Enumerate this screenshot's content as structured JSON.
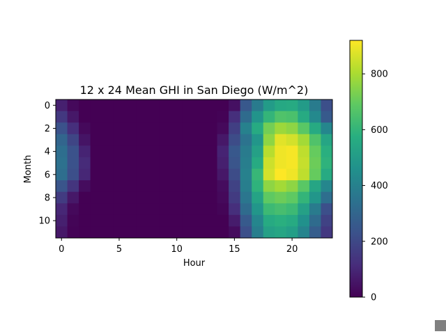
{
  "chart_data": {
    "type": "heatmap",
    "title": "12 x 24 Mean GHI in San Diego (W/m^2)",
    "xlabel": "Hour",
    "ylabel": "Month",
    "x_ticks": [
      0,
      5,
      10,
      15,
      20
    ],
    "y_ticks": [
      0,
      2,
      4,
      6,
      8,
      10
    ],
    "colorbar_ticks": [
      0,
      200,
      400,
      600,
      800
    ],
    "colormap": "viridis",
    "vmin": 0,
    "vmax": 920,
    "rows": 12,
    "cols": 24,
    "values": [
      [
        80,
        20,
        0,
        0,
        0,
        0,
        0,
        0,
        0,
        0,
        0,
        0,
        0,
        0,
        0,
        40,
        250,
        380,
        500,
        550,
        560,
        500,
        380,
        220
      ],
      [
        150,
        60,
        0,
        0,
        0,
        0,
        0,
        0,
        0,
        0,
        0,
        0,
        0,
        0,
        5,
        120,
        320,
        470,
        600,
        660,
        650,
        560,
        430,
        260
      ],
      [
        230,
        120,
        20,
        0,
        0,
        0,
        0,
        0,
        0,
        0,
        0,
        0,
        0,
        0,
        20,
        170,
        400,
        560,
        720,
        780,
        760,
        680,
        560,
        420
      ],
      [
        300,
        190,
        50,
        0,
        0,
        0,
        0,
        0,
        0,
        0,
        0,
        0,
        0,
        0,
        60,
        210,
        350,
        480,
        760,
        880,
        860,
        790,
        660,
        540
      ],
      [
        330,
        230,
        90,
        0,
        0,
        0,
        0,
        0,
        0,
        0,
        0,
        0,
        0,
        0,
        90,
        250,
        380,
        520,
        820,
        900,
        910,
        830,
        700,
        580
      ],
      [
        340,
        230,
        110,
        0,
        0,
        0,
        0,
        0,
        0,
        0,
        0,
        0,
        0,
        0,
        80,
        240,
        390,
        560,
        850,
        900,
        910,
        840,
        710,
        590
      ],
      [
        330,
        220,
        100,
        0,
        0,
        0,
        0,
        0,
        0,
        0,
        0,
        0,
        0,
        0,
        60,
        210,
        400,
        610,
        860,
        920,
        900,
        830,
        700,
        560
      ],
      [
        240,
        140,
        30,
        0,
        0,
        0,
        0,
        0,
        0,
        0,
        0,
        0,
        0,
        0,
        30,
        180,
        390,
        590,
        760,
        790,
        760,
        680,
        540,
        420
      ],
      [
        160,
        60,
        0,
        0,
        0,
        0,
        0,
        0,
        0,
        0,
        0,
        0,
        0,
        0,
        20,
        160,
        360,
        530,
        690,
        710,
        690,
        600,
        480,
        330
      ],
      [
        100,
        20,
        0,
        0,
        0,
        0,
        0,
        0,
        0,
        0,
        0,
        0,
        0,
        0,
        10,
        120,
        320,
        480,
        620,
        640,
        620,
        520,
        380,
        220
      ],
      [
        80,
        10,
        0,
        0,
        0,
        0,
        0,
        0,
        0,
        0,
        0,
        0,
        0,
        0,
        0,
        70,
        260,
        420,
        560,
        580,
        560,
        460,
        320,
        180
      ],
      [
        60,
        5,
        0,
        0,
        0,
        0,
        0,
        0,
        0,
        0,
        0,
        0,
        0,
        0,
        0,
        30,
        220,
        390,
        520,
        540,
        510,
        410,
        270,
        150
      ]
    ]
  }
}
